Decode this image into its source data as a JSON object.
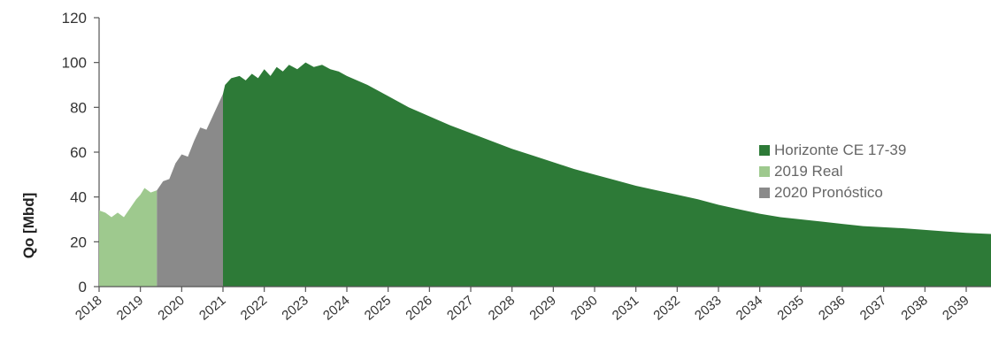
{
  "chart_data": {
    "type": "area",
    "xlabel": "",
    "ylabel": "Qo [Mbd]",
    "ylim": [
      0,
      120
    ],
    "yticks": [
      0,
      20,
      40,
      60,
      80,
      100,
      120
    ],
    "xlim": [
      2018.0,
      2039.6
    ],
    "xticks": [
      "2018",
      "2019",
      "2020",
      "2021",
      "2022",
      "2023",
      "2024",
      "2025",
      "2026",
      "2027",
      "2028",
      "2029",
      "2030",
      "2031",
      "2032",
      "2033",
      "2034",
      "2035",
      "2036",
      "2037",
      "2038",
      "2039"
    ],
    "grid": false,
    "legend_position": "right",
    "series": [
      {
        "name": "Horizonte CE 17-39",
        "color": "#2d7a37",
        "x": [
          2021.0,
          2021.05,
          2021.2,
          2021.4,
          2021.55,
          2021.7,
          2021.85,
          2022.0,
          2022.15,
          2022.3,
          2022.45,
          2022.6,
          2022.8,
          2023.0,
          2023.2,
          2023.4,
          2023.6,
          2023.8,
          2024.0,
          2024.5,
          2025.0,
          2025.5,
          2026.0,
          2026.5,
          2027.0,
          2027.5,
          2028.0,
          2028.5,
          2029.0,
          2029.5,
          2030.0,
          2030.5,
          2031.0,
          2031.5,
          2032.0,
          2032.5,
          2033.0,
          2033.5,
          2034.0,
          2034.5,
          2035.0,
          2035.5,
          2036.0,
          2036.5,
          2037.0,
          2037.5,
          2038.0,
          2038.5,
          2039.0,
          2039.6
        ],
        "values": [
          86,
          90,
          93,
          94,
          92,
          95,
          93,
          97,
          94,
          98,
          96,
          99,
          97,
          100,
          98,
          99,
          97,
          96,
          94,
          90,
          85,
          80,
          76,
          72,
          68.5,
          65,
          61.5,
          58.5,
          55.5,
          52.5,
          50,
          47.5,
          45,
          43,
          41,
          39,
          36.5,
          34.5,
          32.5,
          31,
          30,
          29,
          28,
          27,
          26.5,
          26,
          25.3,
          24.6,
          24,
          23.5
        ]
      },
      {
        "name": "2019 Real",
        "color": "#9ec98e",
        "x": [
          2018.0,
          2018.15,
          2018.3,
          2018.45,
          2018.6,
          2018.75,
          2018.9,
          2019.0,
          2019.1,
          2019.25,
          2019.4
        ],
        "values": [
          34,
          33,
          31,
          33,
          31,
          35,
          39,
          41,
          44,
          42,
          43
        ]
      },
      {
        "name": "2020 Pronóstico",
        "color": "#8a8a8a",
        "x": [
          2019.4,
          2019.55,
          2019.7,
          2019.85,
          2020.0,
          2020.15,
          2020.3,
          2020.45,
          2020.6,
          2020.75,
          2020.9,
          2021.0
        ],
        "values": [
          43,
          47,
          48,
          55,
          59,
          58,
          65,
          71,
          70,
          76,
          82,
          86
        ]
      }
    ]
  }
}
